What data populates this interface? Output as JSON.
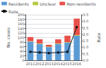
{
  "chart_data": {
    "type": "bar",
    "categories": [
      "2011",
      "2012",
      "2013",
      "2014",
      "2015",
      "2016"
    ],
    "series": [
      {
        "name": "Residents",
        "color": "#5b9bd5",
        "values": [
          82,
          72,
          58,
          72,
          78,
          108
        ]
      },
      {
        "name": "Unclear",
        "color": "#b5c941",
        "values": [
          2,
          2,
          2,
          2,
          2,
          3
        ]
      },
      {
        "name": "Non-residents",
        "color": "#e8504a",
        "values": [
          18,
          18,
          8,
          18,
          28,
          72
        ]
      },
      {
        "name": "Rate",
        "type": "line",
        "axis": "y2",
        "color": "#111111",
        "marker": "square",
        "values": [
          0.65,
          0.6,
          0.55,
          0.6,
          0.65,
          2.55
        ]
      }
    ],
    "stacked": true,
    "ylabel": "No. cases",
    "y2label": "Rate",
    "ylim": [
      0,
      200
    ],
    "yticks": [
      0,
      20,
      40,
      60,
      80,
      100,
      120,
      140,
      160,
      180,
      200
    ],
    "y2lim": [
      0,
      3.5
    ],
    "y2ticks": [
      {
        "value": 0,
        "label": "0.0"
      },
      0.5,
      {
        "value": 1,
        "label": "1.0"
      },
      1.5,
      {
        "value": 2,
        "label": "2.0"
      },
      2.5,
      {
        "value": 3,
        "label": "3.0"
      },
      3.5
    ],
    "grid": true,
    "legend": "upper left"
  }
}
